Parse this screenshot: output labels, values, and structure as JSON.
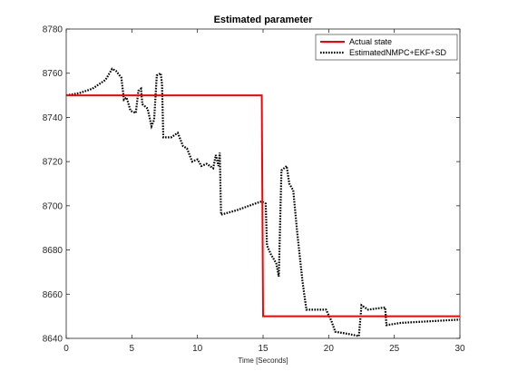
{
  "chart_data": {
    "type": "line",
    "title": "Estimated parameter",
    "xlabel": "Time [Seconds]",
    "ylabel": "",
    "xlim": [
      0,
      30
    ],
    "ylim": [
      8640,
      8780
    ],
    "xticks": [
      0,
      5,
      10,
      15,
      20,
      25,
      30
    ],
    "yticks": [
      8640,
      8660,
      8680,
      8700,
      8720,
      8740,
      8760,
      8780
    ],
    "grid": false,
    "legend_position": "top-right",
    "series": [
      {
        "name": "Actual state",
        "style": "solid",
        "color": "#ff0000",
        "points": [
          [
            0,
            8750
          ],
          [
            14.9,
            8750
          ],
          [
            15.0,
            8650
          ],
          [
            30,
            8650
          ]
        ]
      },
      {
        "name": "EstimatedNMPC+EKF+SD",
        "style": "dotted",
        "color": "#000000",
        "points": [
          [
            0,
            8750
          ],
          [
            1,
            8751
          ],
          [
            2,
            8753
          ],
          [
            3,
            8757
          ],
          [
            3.5,
            8762
          ],
          [
            3.8,
            8761
          ],
          [
            4.2,
            8758
          ],
          [
            4.4,
            8748
          ],
          [
            4.6,
            8749
          ],
          [
            4.9,
            8743
          ],
          [
            5.3,
            8742
          ],
          [
            5.5,
            8752
          ],
          [
            5.7,
            8753
          ],
          [
            5.8,
            8746
          ],
          [
            6.2,
            8744
          ],
          [
            6.5,
            8736
          ],
          [
            6.7,
            8739
          ],
          [
            6.9,
            8759
          ],
          [
            7.2,
            8760
          ],
          [
            7.3,
            8755
          ],
          [
            7.4,
            8731
          ],
          [
            8.0,
            8731
          ],
          [
            8.5,
            8733
          ],
          [
            8.9,
            8727
          ],
          [
            9.2,
            8726
          ],
          [
            9.6,
            8720
          ],
          [
            10.0,
            8721
          ],
          [
            10.3,
            8718
          ],
          [
            10.7,
            8719
          ],
          [
            11.2,
            8717
          ],
          [
            11.4,
            8723
          ],
          [
            11.6,
            8718
          ],
          [
            11.7,
            8724
          ],
          [
            11.8,
            8696
          ],
          [
            13.0,
            8698
          ],
          [
            14.4,
            8701
          ],
          [
            14.9,
            8702
          ],
          [
            15.2,
            8701
          ],
          [
            15.3,
            8682
          ],
          [
            15.6,
            8678
          ],
          [
            16.0,
            8674
          ],
          [
            16.2,
            8668
          ],
          [
            16.4,
            8716
          ],
          [
            16.8,
            8718
          ],
          [
            17.0,
            8710
          ],
          [
            17.3,
            8707
          ],
          [
            17.6,
            8688
          ],
          [
            18.0,
            8666
          ],
          [
            18.3,
            8653
          ],
          [
            19.8,
            8653
          ],
          [
            20.2,
            8648
          ],
          [
            20.5,
            8643
          ],
          [
            21.5,
            8642
          ],
          [
            22.3,
            8641
          ],
          [
            22.5,
            8655
          ],
          [
            23.0,
            8653
          ],
          [
            24.3,
            8654
          ],
          [
            24.4,
            8646
          ],
          [
            25.5,
            8647
          ],
          [
            27.0,
            8647.5
          ],
          [
            30,
            8648.5
          ]
        ]
      }
    ]
  }
}
